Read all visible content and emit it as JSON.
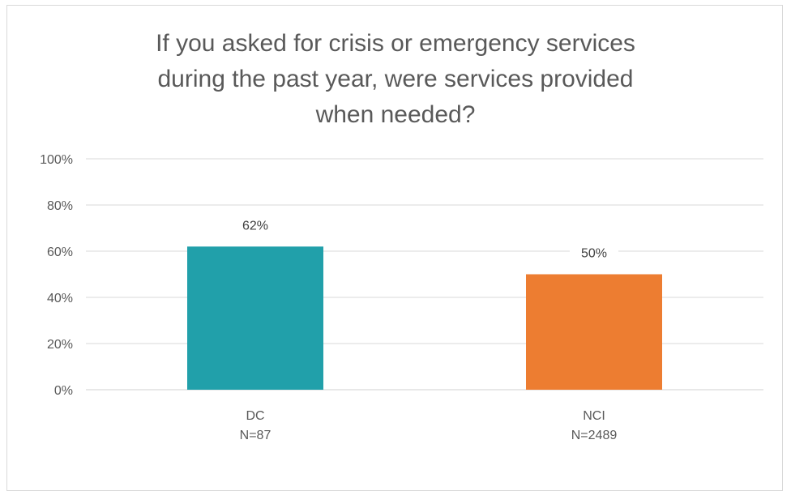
{
  "chart_data": {
    "type": "bar",
    "title_lines": [
      "If you asked for crisis or emergency services",
      "during the past year, were services provided",
      "when needed?"
    ],
    "categories": [
      {
        "name": "DC",
        "n_label": "N=87"
      },
      {
        "name": "NCI",
        "n_label": "N=2489"
      }
    ],
    "values": [
      62,
      50
    ],
    "data_labels": [
      "62%",
      "50%"
    ],
    "colors": [
      "#21a0aa",
      "#ed7d31"
    ],
    "ylim": [
      0,
      100
    ],
    "yticks": [
      0,
      20,
      40,
      60,
      80,
      100
    ],
    "ytick_labels": [
      "0%",
      "20%",
      "40%",
      "60%",
      "80%",
      "100%"
    ],
    "grid": true,
    "legend": "none"
  }
}
